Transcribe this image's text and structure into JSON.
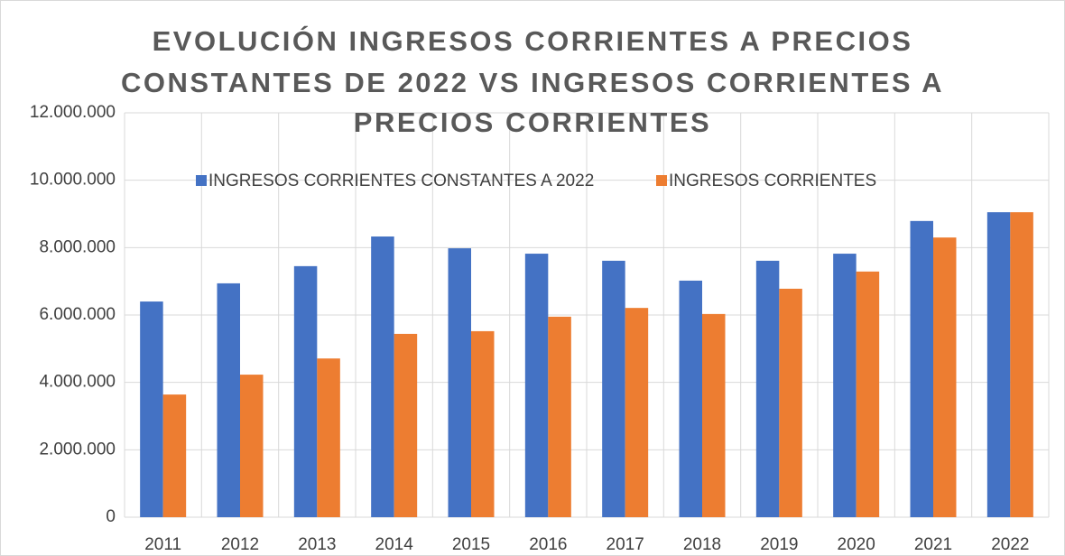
{
  "chart_data": {
    "type": "bar",
    "title": [
      "EVOLUCIÓN INGRESOS CORRIENTES A PRECIOS",
      "CONSTANTES DE 2022 VS INGRESOS CORRIENTES A",
      "PRECIOS CORRIENTES"
    ],
    "categories": [
      "2011",
      "2012",
      "2013",
      "2014",
      "2015",
      "2016",
      "2017",
      "2018",
      "2019",
      "2020",
      "2021",
      "2022"
    ],
    "series": [
      {
        "name": "INGRESOS CORRIENTES CONSTANTES A 2022",
        "color": "#4472c4",
        "values": [
          6400000,
          6940000,
          7450000,
          8330000,
          7980000,
          7820000,
          7610000,
          7020000,
          7610000,
          7820000,
          8790000,
          9050000
        ]
      },
      {
        "name": "INGRESOS CORRIENTES",
        "color": "#ed7d31",
        "values": [
          3640000,
          4230000,
          4710000,
          5440000,
          5520000,
          5950000,
          6210000,
          6030000,
          6780000,
          7290000,
          8300000,
          9050000
        ]
      }
    ],
    "ylim": [
      0,
      12000000
    ],
    "yticks": [
      0,
      {
        "value": 2000000,
        "label": "2.000.000"
      },
      {
        "value": 4000000,
        "label": "4.000.000"
      },
      {
        "value": 6000000,
        "label": "6.000.000"
      },
      {
        "value": 8000000,
        "label": "8.000.000"
      },
      {
        "value": 10000000,
        "label": "10.000.000"
      },
      {
        "value": 12000000,
        "label": "12.000.000"
      }
    ],
    "grid": true,
    "legend": "top"
  }
}
